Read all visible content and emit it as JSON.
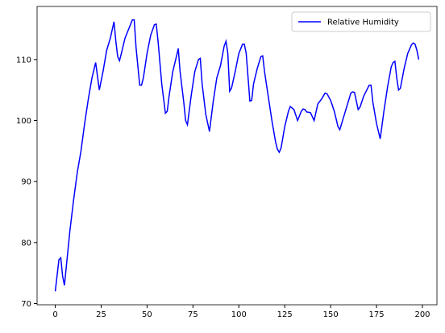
{
  "chart_data": {
    "type": "line",
    "x": [
      0,
      2,
      3,
      4,
      5,
      6,
      8,
      10,
      12,
      14,
      16,
      18,
      20,
      22,
      24,
      26,
      28,
      30,
      32,
      33,
      34,
      35,
      36,
      38,
      40,
      42,
      43,
      44,
      46,
      47,
      48,
      50,
      52,
      54,
      55,
      56,
      58,
      60,
      61,
      62,
      64,
      66,
      67,
      68,
      70,
      71,
      72,
      74,
      76,
      78,
      79,
      80,
      82,
      84,
      86,
      88,
      90,
      92,
      93,
      94,
      95,
      96,
      98,
      100,
      102,
      103,
      104,
      106,
      107,
      108,
      110,
      112,
      113,
      114,
      116,
      118,
      120,
      121,
      122,
      123,
      125,
      127,
      128,
      130,
      132,
      134,
      135,
      136,
      137,
      139,
      141,
      143,
      145,
      147,
      148,
      150,
      152,
      154,
      155,
      157,
      159,
      161,
      162,
      163,
      165,
      166,
      168,
      170,
      171,
      172,
      173,
      175,
      177,
      179,
      181,
      183,
      184,
      185,
      186,
      187,
      188,
      190,
      192,
      194,
      195,
      196,
      197,
      198
    ],
    "series": [
      {
        "name": "Relative Humidity",
        "color": "#0000ff",
        "values": [
          72,
          77.2,
          77.5,
          74.5,
          73,
          76,
          82,
          87,
          91.5,
          95,
          99.5,
          103.5,
          107,
          109.5,
          105,
          108,
          111.5,
          113.5,
          116.2,
          113,
          110.5,
          109.8,
          111,
          113.5,
          115,
          116.5,
          116.5,
          112,
          105.8,
          105.8,
          107,
          111,
          114,
          115.7,
          115.8,
          113,
          106,
          101.2,
          101.5,
          104,
          108,
          110.5,
          111.8,
          108,
          103,
          100,
          99.3,
          104,
          108,
          110,
          110.2,
          106,
          101,
          98.2,
          103,
          107,
          109,
          112.2,
          113,
          111,
          104.8,
          105.3,
          108,
          111,
          112.5,
          112.5,
          111,
          103.2,
          103.3,
          106,
          108.5,
          110.5,
          110.6,
          108,
          104,
          100,
          96.5,
          95.3,
          94.8,
          95.5,
          99,
          101.5,
          102.3,
          101.8,
          100,
          101.5,
          101.9,
          101.8,
          101.4,
          101.3,
          100,
          102.7,
          103.5,
          104.5,
          104.4,
          103.3,
          101.5,
          99,
          98.5,
          100.5,
          102.5,
          104.5,
          104.7,
          104.6,
          101.8,
          102.2,
          104,
          105.2,
          105.8,
          105.8,
          103,
          99.5,
          97,
          101.5,
          105.5,
          108.8,
          109.5,
          109.7,
          107,
          105,
          105.3,
          108.5,
          111,
          112.4,
          112.7,
          112.5,
          111.5,
          110
        ]
      }
    ],
    "xlim": [
      -9.9,
      207.9
    ],
    "xticks": [
      0,
      25,
      50,
      75,
      100,
      125,
      150,
      175,
      200
    ],
    "ylim": [
      69.8,
      118.7
    ],
    "yticks": [
      70,
      80,
      90,
      100,
      110
    ],
    "legend": "upper right"
  }
}
